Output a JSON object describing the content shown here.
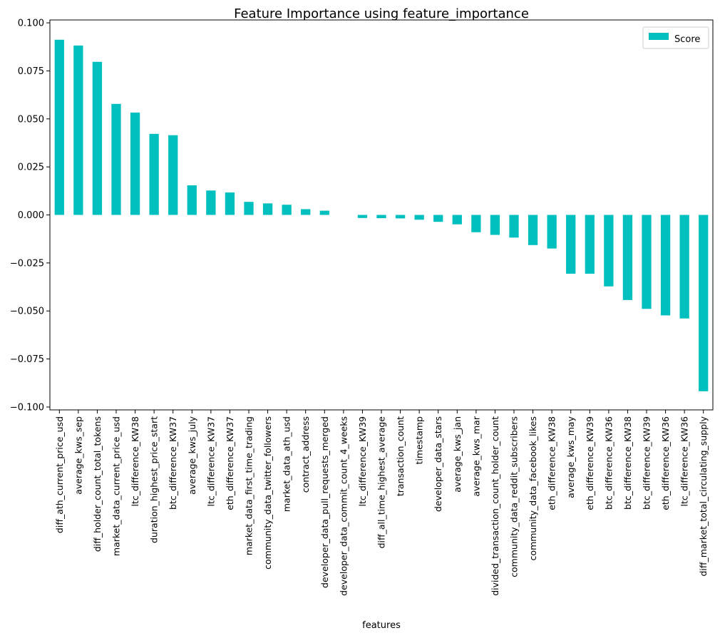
{
  "chart_data": {
    "type": "bar",
    "title": "Feature Importance using feature_importance",
    "xlabel": "features",
    "ylabel": "",
    "ylim": [
      -0.1,
      0.1
    ],
    "yticks": [
      "0.100",
      "0.075",
      "0.050",
      "0.025",
      "0.000",
      "−0.025",
      "−0.050",
      "−0.075",
      "−0.100"
    ],
    "ytick_values": [
      0.1,
      0.075,
      0.05,
      0.025,
      0.0,
      -0.025,
      -0.05,
      -0.075,
      -0.1
    ],
    "grid": false,
    "legend_position": "top-right",
    "bar_color": "#00bfbf",
    "categories": [
      "diff_ath_current_price_usd",
      "average_kws_sep",
      "diff_holder_count_total_tokens",
      "market_data_current_price_usd",
      "ltc_difference_KW38",
      "duration_highest_price_start",
      "btc_difference_KW37",
      "average_kws_july",
      "ltc_difference_KW37",
      "eth_difference_KW37",
      "market_data_first_time_trading",
      "community_data_twitter_followers",
      "market_data_ath_usd",
      "contract_address",
      "developer_data_pull_requests_merged",
      "developer_data_commit_count_4_weeks",
      "ltc_difference_KW39",
      "diff_all_time_highest_average",
      "transaction_count",
      "timestamp",
      "developer_data_stars",
      "average_kws_jan",
      "average_kws_mar",
      "divided_transaction_count_holder_count",
      "community_data_reddit_subscribers",
      "community_data_facebook_likes",
      "eth_difference_KW38",
      "average_kws_may",
      "eth_difference_KW39",
      "btc_difference_KW36",
      "btc_difference_KW38",
      "btc_difference_KW39",
      "eth_difference_KW36",
      "ltc_difference_KW36",
      "diff_market_total_circulating_supply"
    ],
    "series": [
      {
        "name": "Score",
        "values": [
          0.0912,
          0.0882,
          0.0797,
          0.0578,
          0.0533,
          0.0422,
          0.0415,
          0.0154,
          0.0127,
          0.0117,
          0.0068,
          0.006,
          0.0053,
          0.003,
          0.0022,
          0.0,
          -0.0016,
          -0.0017,
          -0.0018,
          -0.0025,
          -0.0036,
          -0.0049,
          -0.009,
          -0.0104,
          -0.0118,
          -0.0157,
          -0.0175,
          -0.0306,
          -0.0306,
          -0.0372,
          -0.0443,
          -0.0489,
          -0.0523,
          -0.0539,
          -0.0918
        ]
      }
    ]
  }
}
